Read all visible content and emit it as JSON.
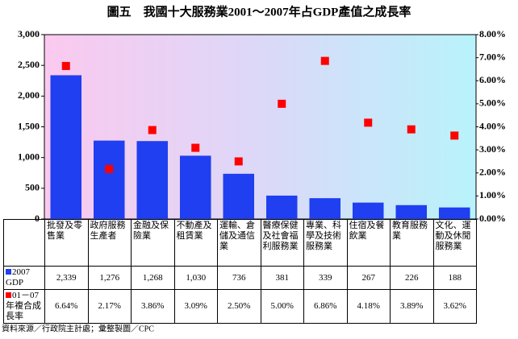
{
  "chart_data": {
    "type": "bar-dot",
    "title": "圖五　我國十大服務業2001～2007年占GDP產值之成長率",
    "categories": [
      "批發及零售業",
      "政府服務生產者",
      "金融及保險業",
      "不動產及租賃業",
      "運輸、倉儲及通信業",
      "醫療保健及社會福利服務業",
      "專業、科學及技術服務業",
      "住宿及餐飲業",
      "教育服務業",
      "文化、運動及休閒服務業"
    ],
    "series": [
      {
        "name": "2007 GDP",
        "color": "#1f3ff0",
        "values": [
          2339,
          1276,
          1268,
          1030,
          736,
          381,
          339,
          267,
          226,
          188
        ],
        "value_labels": [
          "2,339",
          "1,276",
          "1,268",
          "1,030",
          "736",
          "381",
          "339",
          "267",
          "226",
          "188"
        ]
      },
      {
        "name": "01－07年複合成長率",
        "color": "#ff0000",
        "axis": "y2",
        "values": [
          6.64,
          2.17,
          3.86,
          3.09,
          2.5,
          5.0,
          6.86,
          4.18,
          3.89,
          3.62
        ],
        "value_labels": [
          "6.64%",
          "2.17%",
          "3.86%",
          "3.09%",
          "2.50%",
          "5.00%",
          "6.86%",
          "4.18%",
          "3.89%",
          "3.62%"
        ]
      }
    ],
    "ylim": [
      0,
      3000
    ],
    "yticks": [
      0,
      500,
      {
        "value": 1000,
        "label": "1,000"
      },
      {
        "value": 1500,
        "label": "1,500"
      },
      {
        "value": 2000,
        "label": "2,000"
      },
      {
        "value": 2500,
        "label": "2,500"
      },
      {
        "value": 3000,
        "label": "3,000"
      }
    ],
    "y2lim": [
      0,
      8
    ],
    "y2ticks": [
      {
        "value": 0,
        "label": "0.00%"
      },
      {
        "value": 1,
        "label": "1.00%"
      },
      {
        "value": 2,
        "label": "2.00%"
      },
      {
        "value": 3,
        "label": "3.00%"
      },
      {
        "value": 4,
        "label": "4.00%"
      },
      {
        "value": 5,
        "label": "5.00%"
      },
      {
        "value": 6,
        "label": "6.00%"
      },
      {
        "value": 7,
        "label": "7.00%"
      },
      {
        "value": 8,
        "label": "8.00%"
      }
    ],
    "source": "資料來源／行政院主計處；彙整製圖／CPC"
  }
}
